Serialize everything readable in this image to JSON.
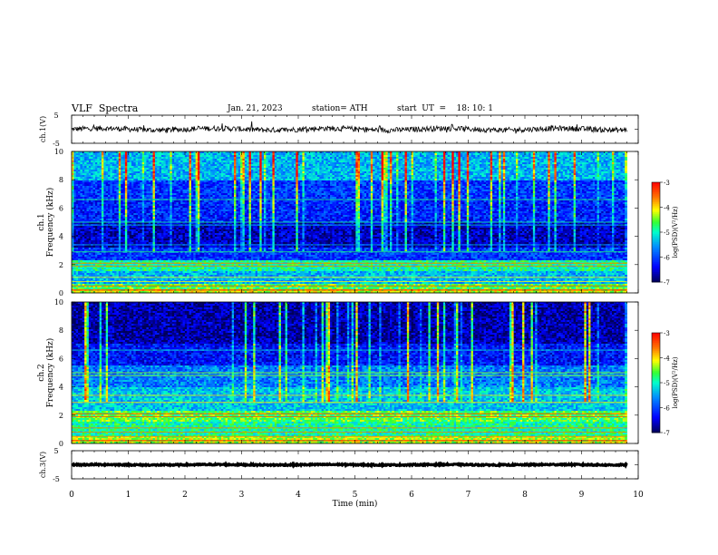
{
  "header": {
    "title": "VLF  Spectra",
    "date": "Jan. 21, 2023",
    "station": "station= ATH",
    "start": "start  UT  =    18: 10: 1"
  },
  "chart_data": [
    {
      "type": "line",
      "panel": "ch1-waveform",
      "ylabel": "ch.1(V)",
      "yticks": [
        "5",
        "-5"
      ],
      "ylim": [
        -5,
        5
      ],
      "xlim": [
        0,
        10
      ],
      "description_values": {
        "x_start": 0,
        "x_end": 9.8,
        "mean": 0,
        "noise_amp": 1.2
      }
    },
    {
      "type": "heatmap",
      "panel": "ch1-spectrogram",
      "ylabel": "ch.1",
      "ylabel2": "Frequency (kHz)",
      "yticks": [
        "0",
        "2",
        "4",
        "6",
        "8",
        "10"
      ],
      "ylim": [
        0,
        10
      ],
      "xlim": [
        0,
        9.8
      ],
      "colorbar": {
        "label": "log(PSD)(V²/Hz)",
        "ticks": [
          "-3",
          "-4",
          "-5",
          "-6",
          "-7"
        ],
        "range": [
          -7,
          -3
        ]
      },
      "bands": [
        {
          "from": 0,
          "to": 0.3,
          "level": -4.2
        },
        {
          "from": 0.3,
          "to": 0.6,
          "level": -4.6
        },
        {
          "from": 0.6,
          "to": 1.5,
          "level": -5.4
        },
        {
          "from": 1.5,
          "to": 2.3,
          "level": -4.9
        },
        {
          "from": 2.3,
          "to": 3.2,
          "level": -6.1
        },
        {
          "from": 3.2,
          "to": 5.0,
          "level": -6.6
        },
        {
          "from": 5.0,
          "to": 6.5,
          "level": -6.2
        },
        {
          "from": 6.5,
          "to": 8.0,
          "level": -6.1
        },
        {
          "from": 8.0,
          "to": 10.0,
          "level": -5.4
        }
      ]
    },
    {
      "type": "heatmap",
      "panel": "ch2-spectrogram",
      "ylabel": "ch.2",
      "ylabel2": "Frequency (kHz)",
      "yticks": [
        "0",
        "2",
        "4",
        "6",
        "8",
        "10"
      ],
      "ylim": [
        0,
        10
      ],
      "xlim": [
        0,
        9.8
      ],
      "colorbar": {
        "label": "log(PSD)(V²/Hz)",
        "ticks": [
          "-3",
          "-4",
          "-5",
          "-6",
          "-7"
        ],
        "range": [
          -7,
          -3
        ]
      },
      "bands": [
        {
          "from": 0,
          "to": 0.5,
          "level": -4.3
        },
        {
          "from": 0.5,
          "to": 1.5,
          "level": -4.9
        },
        {
          "from": 1.5,
          "to": 2.3,
          "level": -4.6
        },
        {
          "from": 2.3,
          "to": 4.0,
          "level": -5.3
        },
        {
          "from": 4.0,
          "to": 5.5,
          "level": -5.7
        },
        {
          "from": 5.5,
          "to": 7.0,
          "level": -6.3
        },
        {
          "from": 7.0,
          "to": 10.0,
          "level": -6.7
        }
      ]
    },
    {
      "type": "line",
      "panel": "ch3-waveform",
      "ylabel": "ch.3(V)",
      "yticks": [
        "5",
        "-5"
      ],
      "ylim": [
        -5,
        5
      ],
      "xlim": [
        0,
        10
      ],
      "xlabel": "Time  (min)",
      "xticks": [
        "0",
        "1",
        "2",
        "3",
        "4",
        "5",
        "6",
        "7",
        "8",
        "9",
        "10"
      ],
      "description_values": {
        "x_start": 0,
        "x_end": 9.8,
        "mean": 0,
        "noise_amp": 0.3
      }
    }
  ]
}
